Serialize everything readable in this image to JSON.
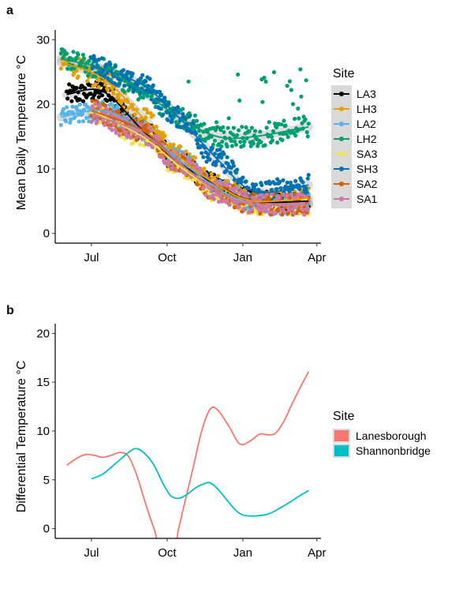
{
  "chart_data": [
    {
      "panel": "a",
      "type": "scatter",
      "title": "",
      "xlabel": "",
      "ylabel": "Mean Daily Temperature °C",
      "x_ticks": [
        "Jul",
        "Oct",
        "Jan",
        "Apr"
      ],
      "x_tick_dates": [
        "2018-07-01",
        "2018-10-01",
        "2019-01-01",
        "2019-04-01"
      ],
      "xlim": [
        "2018-05-18",
        "2019-04-06"
      ],
      "y_ticks": [
        0,
        10,
        20,
        30
      ],
      "ylim": [
        -1.5,
        31.5
      ],
      "grid": false,
      "smoothing": "loess with grey confidence band",
      "legend": {
        "title": "Site",
        "position": "right",
        "entries": [
          {
            "label": "LA3",
            "color": "#000000"
          },
          {
            "label": "LH3",
            "color": "#E69F00"
          },
          {
            "label": "LA2",
            "color": "#56B4E9"
          },
          {
            "label": "LH2",
            "color": "#009E73"
          },
          {
            "label": "SA3",
            "color": "#F0E442"
          },
          {
            "label": "SH3",
            "color": "#0072B2"
          },
          {
            "label": "SA2",
            "color": "#D55E00"
          },
          {
            "label": "SA1",
            "color": "#CC79A7"
          }
        ]
      },
      "series": [
        {
          "name": "LA3",
          "color": "#000000",
          "start": "2018-06-01",
          "end": "2019-03-22",
          "trend": [
            [
              "2018-06-01",
              21.5
            ],
            [
              "2018-07-15",
              22
            ],
            [
              "2018-09-01",
              16
            ],
            [
              "2018-10-15",
              11
            ],
            [
              "2018-12-01",
              7.5
            ],
            [
              "2019-01-15",
              5
            ],
            [
              "2019-03-22",
              5
            ]
          ]
        },
        {
          "name": "LH3",
          "color": "#E69F00",
          "start": "2018-05-25",
          "end": "2019-03-22",
          "trend": [
            [
              "2018-05-25",
              26.5
            ],
            [
              "2018-07-15",
              24
            ],
            [
              "2018-09-01",
              18
            ],
            [
              "2018-10-15",
              12
            ],
            [
              "2018-12-01",
              7.5
            ],
            [
              "2019-01-15",
              5
            ],
            [
              "2019-03-22",
              5.5
            ]
          ]
        },
        {
          "name": "LA2",
          "color": "#56B4E9",
          "start": "2018-05-25",
          "end": "2019-03-22",
          "trend": [
            [
              "2018-05-25",
              18
            ],
            [
              "2018-07-15",
              19
            ],
            [
              "2018-09-01",
              16
            ],
            [
              "2018-10-15",
              11.5
            ],
            [
              "2018-12-01",
              7
            ],
            [
              "2019-01-15",
              4.5
            ],
            [
              "2019-03-22",
              4.5
            ]
          ]
        },
        {
          "name": "LH2",
          "color": "#009E73",
          "start": "2018-05-25",
          "end": "2019-03-22",
          "trend": [
            [
              "2018-05-25",
              27
            ],
            [
              "2018-07-15",
              25.5
            ],
            [
              "2018-09-01",
              22
            ],
            [
              "2018-10-15",
              18
            ],
            [
              "2018-12-01",
              15
            ],
            [
              "2019-01-15",
              15
            ],
            [
              "2019-03-22",
              16.5
            ]
          ]
        },
        {
          "name": "SA3",
          "color": "#F0E442",
          "start": "2018-07-01",
          "end": "2019-03-22",
          "trend": [
            [
              "2018-07-01",
              19
            ],
            [
              "2018-09-01",
              15
            ],
            [
              "2018-10-15",
              10.5
            ],
            [
              "2018-12-01",
              6.5
            ],
            [
              "2019-01-15",
              4.5
            ],
            [
              "2019-03-22",
              4.5
            ]
          ]
        },
        {
          "name": "SH3",
          "color": "#0072B2",
          "start": "2018-07-01",
          "end": "2019-03-22",
          "trend": [
            [
              "2018-07-01",
              26
            ],
            [
              "2018-09-01",
              23
            ],
            [
              "2018-10-15",
              18
            ],
            [
              "2018-12-01",
              11.5
            ],
            [
              "2019-01-15",
              6.5
            ],
            [
              "2019-03-22",
              7.5
            ]
          ]
        },
        {
          "name": "SA2",
          "color": "#D55E00",
          "start": "2018-07-01",
          "end": "2019-03-22",
          "trend": [
            [
              "2018-07-01",
              19
            ],
            [
              "2018-09-01",
              16
            ],
            [
              "2018-10-15",
              11
            ],
            [
              "2018-12-01",
              6.5
            ],
            [
              "2019-01-15",
              4.5
            ],
            [
              "2019-03-22",
              4.5
            ]
          ]
        },
        {
          "name": "SA1",
          "color": "#CC79A7",
          "start": "2018-07-01",
          "end": "2019-03-22",
          "trend": [
            [
              "2018-07-01",
              18.5
            ],
            [
              "2018-09-01",
              15.5
            ],
            [
              "2018-10-15",
              11
            ],
            [
              "2018-12-01",
              6.5
            ],
            [
              "2019-01-15",
              4.5
            ],
            [
              "2019-03-22",
              4.5
            ]
          ]
        }
      ]
    },
    {
      "panel": "b",
      "type": "line",
      "title": "",
      "xlabel": "",
      "ylabel": "Differential Temperature °C",
      "x_ticks": [
        "Jul",
        "Oct",
        "Jan",
        "Apr"
      ],
      "x_tick_dates": [
        "2018-07-01",
        "2018-10-01",
        "2019-01-01",
        "2019-04-01"
      ],
      "xlim": [
        "2018-05-18",
        "2019-04-06"
      ],
      "y_ticks": [
        0,
        5,
        10,
        15,
        20
      ],
      "ylim": [
        -1,
        21
      ],
      "grid": false,
      "legend": {
        "title": "Site",
        "position": "right",
        "entries": [
          {
            "label": "Lanesborough",
            "color": "#F8766D"
          },
          {
            "label": "Shannonbridge",
            "color": "#00BFC4"
          }
        ]
      },
      "series": [
        {
          "name": "Lanesborough",
          "color": "#F8766D",
          "points": [
            [
              "2018-06-01",
              6.5
            ],
            [
              "2018-06-15",
              7.3
            ],
            [
              "2018-06-25",
              7.6
            ],
            [
              "2018-07-05",
              7.5
            ],
            [
              "2018-07-15",
              7.3
            ],
            [
              "2018-07-28",
              7.6
            ],
            [
              "2018-08-05",
              7.8
            ],
            [
              "2018-08-15",
              7.4
            ],
            [
              "2018-08-25",
              5.5
            ],
            [
              "2018-09-05",
              2.5
            ],
            [
              "2018-09-15",
              0
            ],
            [
              "2018-09-22",
              -1.5
            ],
            [
              "2018-10-10",
              -1.5
            ],
            [
              "2018-10-15",
              0
            ],
            [
              "2018-10-22",
              2.5
            ],
            [
              "2018-11-01",
              6
            ],
            [
              "2018-11-12",
              10
            ],
            [
              "2018-11-22",
              12.2
            ],
            [
              "2018-12-01",
              12.2
            ],
            [
              "2018-12-15",
              10.5
            ],
            [
              "2018-12-25",
              9
            ],
            [
              "2019-01-01",
              8.6
            ],
            [
              "2019-01-12",
              9.1
            ],
            [
              "2019-01-22",
              9.7
            ],
            [
              "2019-02-01",
              9.6
            ],
            [
              "2019-02-10",
              9.8
            ],
            [
              "2019-02-20",
              11
            ],
            [
              "2019-03-02",
              12.8
            ],
            [
              "2019-03-12",
              14.5
            ],
            [
              "2019-03-22",
              16.1
            ]
          ]
        },
        {
          "name": "Shannonbridge",
          "color": "#00BFC4",
          "points": [
            [
              "2018-07-01",
              5.1
            ],
            [
              "2018-07-15",
              5.6
            ],
            [
              "2018-08-01",
              6.8
            ],
            [
              "2018-08-15",
              7.8
            ],
            [
              "2018-08-25",
              8.2
            ],
            [
              "2018-09-05",
              7.6
            ],
            [
              "2018-09-15",
              6.5
            ],
            [
              "2018-09-25",
              4.8
            ],
            [
              "2018-10-05",
              3.4
            ],
            [
              "2018-10-15",
              3.1
            ],
            [
              "2018-10-25",
              3.5
            ],
            [
              "2018-11-05",
              4.2
            ],
            [
              "2018-11-15",
              4.6
            ],
            [
              "2018-11-22",
              4.7
            ],
            [
              "2018-12-01",
              4.1
            ],
            [
              "2018-12-12",
              3
            ],
            [
              "2018-12-22",
              2
            ],
            [
              "2019-01-01",
              1.4
            ],
            [
              "2019-01-15",
              1.3
            ],
            [
              "2019-02-01",
              1.5
            ],
            [
              "2019-02-15",
              2.1
            ],
            [
              "2019-03-01",
              2.8
            ],
            [
              "2019-03-10",
              3.3
            ],
            [
              "2019-03-22",
              3.9
            ]
          ]
        }
      ]
    }
  ]
}
